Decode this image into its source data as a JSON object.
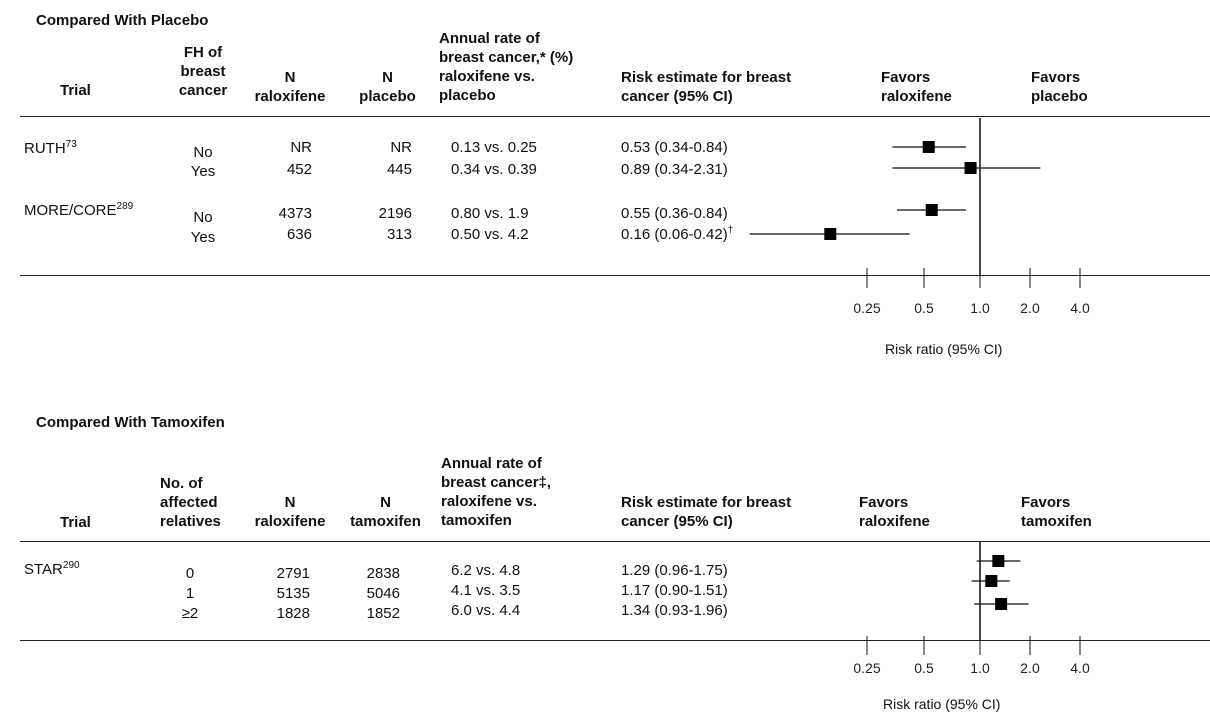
{
  "panel1": {
    "section_title": "Compared With Placebo",
    "headers": {
      "trial": "Trial",
      "fh_line1": "FH of",
      "fh_line2": "breast",
      "fh_line3": "cancer",
      "n_ral_line1": "N",
      "n_ral_line2": "raloxifene",
      "n_comp_line1": "N",
      "n_comp_line2": "placebo",
      "rate_line1": "Annual  rate of",
      "rate_line2": "breast cancer,* (%)",
      "rate_line3": "raloxifene vs.",
      "rate_line4": "placebo",
      "risk_line1": "Risk estimate for breast",
      "risk_line2": "cancer (95% CI)",
      "favors_left_1": "Favors",
      "favors_left_2": "raloxifene",
      "favors_right_1": "Favors",
      "favors_right_2": "placebo"
    },
    "trials": [
      {
        "name": "RUTH",
        "ref": "73"
      },
      {
        "name": "MORE/CORE",
        "ref": "289"
      }
    ],
    "rows": [
      {
        "fh": "No",
        "n_ral": "NR",
        "n_comp": "NR",
        "rate": "0.13 vs. 0.25",
        "risk": "0.53 (0.34-0.84)",
        "risk_sup": ""
      },
      {
        "fh": "Yes",
        "n_ral": "452",
        "n_comp": "445",
        "rate": "0.34 vs. 0.39",
        "risk": "0.89 (0.34-2.31)",
        "risk_sup": ""
      },
      {
        "fh": "No",
        "n_ral": "4373",
        "n_comp": "2196",
        "rate": "0.80 vs. 1.9",
        "risk": "0.55 (0.36-0.84)",
        "risk_sup": ""
      },
      {
        "fh": "Yes",
        "n_ral": "636",
        "n_comp": "313",
        "rate": "0.50 vs. 4.2",
        "risk": "0.16 (0.06-0.42)",
        "risk_sup": "†"
      }
    ],
    "axis_label": "Risk ratio (95% CI)"
  },
  "panel2": {
    "section_title": "Compared With Tamoxifen",
    "headers": {
      "trial": "Trial",
      "fh_line1": "No. of",
      "fh_line2": "affected",
      "fh_line3": "relatives",
      "n_ral_line1": "N",
      "n_ral_line2": "raloxifene",
      "n_comp_line1": "N",
      "n_comp_line2": "tamoxifen",
      "rate_line1": "Annual rate of",
      "rate_line2": "breast cancer‡,",
      "rate_line3": "raloxifene vs.",
      "rate_line4": "tamoxifen",
      "risk_line1": "Risk estimate for breast",
      "risk_line2": "cancer (95% CI)",
      "favors_left_1": "Favors",
      "favors_left_2": "raloxifene",
      "favors_right_1": "Favors",
      "favors_right_2": "tamoxifen"
    },
    "trials": [
      {
        "name": "STAR",
        "ref": "290"
      }
    ],
    "rows": [
      {
        "fh": "0",
        "n_ral": "2791",
        "n_comp": "2838",
        "rate": "6.2 vs. 4.8",
        "risk": "1.29 (0.96-1.75)"
      },
      {
        "fh": "1",
        "n_ral": "5135",
        "n_comp": "5046",
        "rate": "4.1 vs. 3.5",
        "risk": "1.17 (0.90-1.51)"
      },
      {
        "fh": "≥2",
        "n_ral": "1828",
        "n_comp": "1852",
        "rate": "6.0 vs. 4.4",
        "risk": "1.34 (0.93-1.96)"
      }
    ],
    "axis_label": "Risk ratio (95% CI)"
  },
  "chart_data": [
    {
      "type": "forest",
      "title": "Compared With Placebo",
      "xlabel": "Risk ratio (95% CI)",
      "x_scale": "log",
      "x_ticks": [
        0.25,
        0.5,
        1.0,
        2.0,
        4.0
      ],
      "x_tick_labels": [
        "0.25",
        "0.5",
        "1.0",
        "2.0",
        "4.0"
      ],
      "reference_line": 1.0,
      "series": [
        {
          "estimate": 0.53,
          "lower": 0.34,
          "upper": 0.84
        },
        {
          "estimate": 0.89,
          "lower": 0.34,
          "upper": 2.31
        },
        {
          "estimate": 0.55,
          "lower": 0.36,
          "upper": 0.84
        },
        {
          "estimate": 0.16,
          "lower": 0.06,
          "upper": 0.42
        }
      ]
    },
    {
      "type": "forest",
      "title": "Compared With Tamoxifen",
      "xlabel": "Risk ratio (95% CI)",
      "x_scale": "log",
      "x_ticks": [
        0.25,
        0.5,
        1.0,
        2.0,
        4.0
      ],
      "x_tick_labels": [
        "0.25",
        "0.5",
        "1.0",
        "2.0",
        "4.0"
      ],
      "reference_line": 1.0,
      "series": [
        {
          "estimate": 1.29,
          "lower": 0.96,
          "upper": 1.75
        },
        {
          "estimate": 1.17,
          "lower": 0.9,
          "upper": 1.51
        },
        {
          "estimate": 1.34,
          "lower": 0.93,
          "upper": 1.96
        }
      ]
    }
  ]
}
